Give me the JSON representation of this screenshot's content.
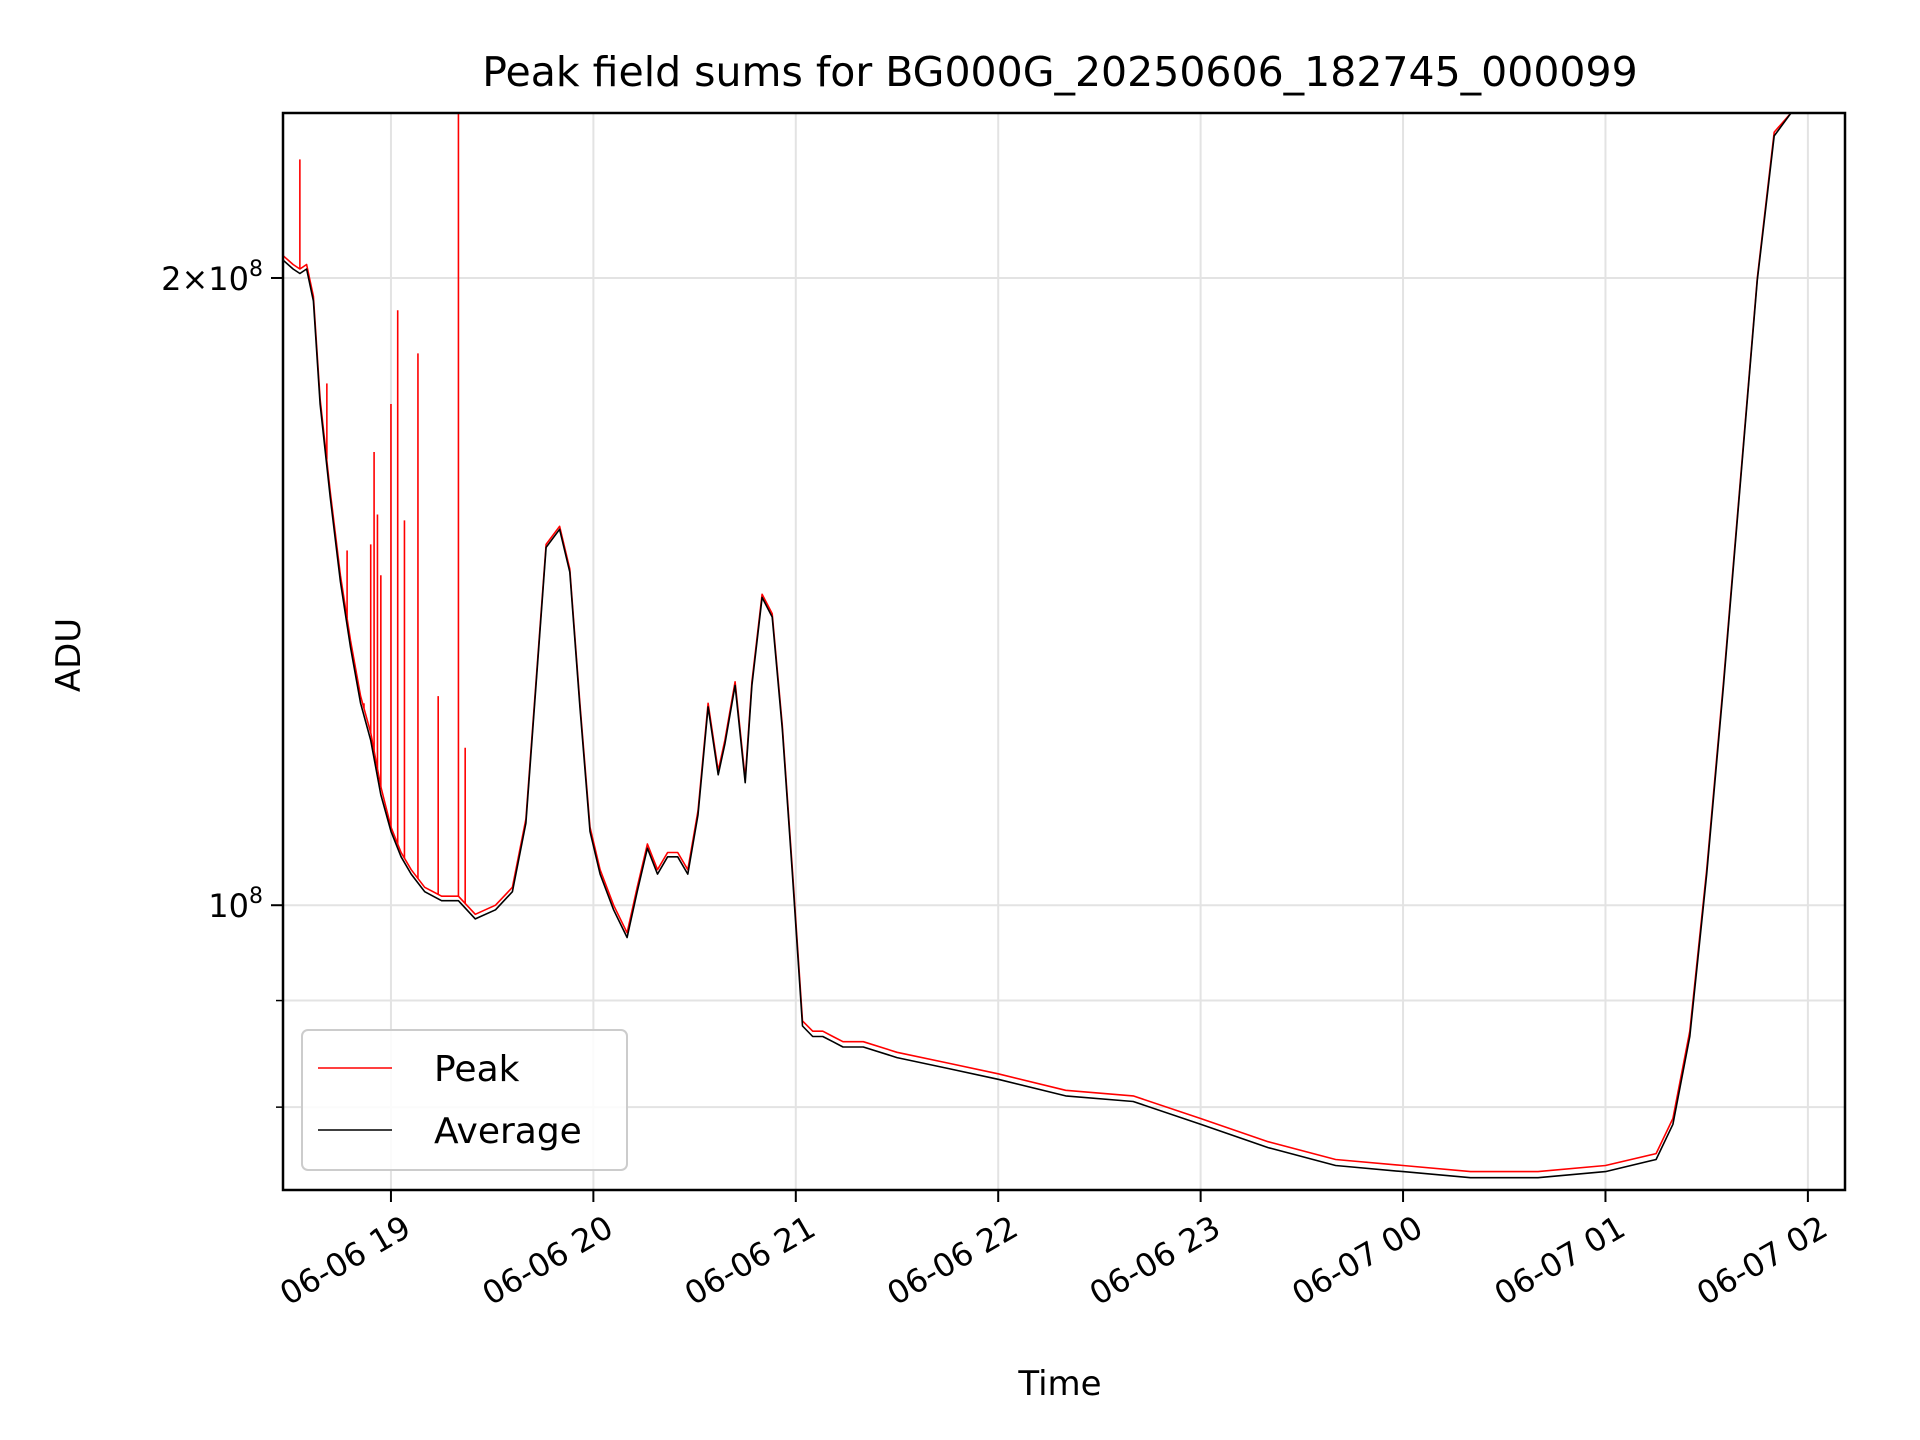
{
  "chart_data": {
    "type": "line",
    "title": "Peak field sums for BG000G_20250606_182745_000099",
    "xlabel": "Time",
    "ylabel": "ADU",
    "x_unit": "hours",
    "xlim": [
      "2025-06-06 18:28",
      "2025-06-07 02:11"
    ],
    "ylim": [
      73000000,
      240000000
    ],
    "yscale": "log",
    "grid": true,
    "legend_position": "lower-left",
    "x_ticks": [
      {
        "value": "2025-06-06 19:00",
        "label": "06-06 19"
      },
      {
        "value": "2025-06-06 20:00",
        "label": "06-06 20"
      },
      {
        "value": "2025-06-06 21:00",
        "label": "06-06 21"
      },
      {
        "value": "2025-06-06 22:00",
        "label": "06-06 22"
      },
      {
        "value": "2025-06-06 23:00",
        "label": "06-06 23"
      },
      {
        "value": "2025-06-07 00:00",
        "label": "06-07 00"
      },
      {
        "value": "2025-06-07 01:00",
        "label": "06-07 01"
      },
      {
        "value": "2025-06-07 02:00",
        "label": "06-07 02"
      }
    ],
    "y_ticks": [
      {
        "value": 200000000,
        "mant": "2",
        "exp": "8"
      },
      {
        "value": 100000000,
        "mant": "",
        "exp": "8"
      }
    ],
    "y_minor_ticks": [
      80000000,
      90000000
    ],
    "series": [
      {
        "name": "Peak",
        "color": "#ff0000",
        "x": [
          "2025-06-06 18:28",
          "2025-06-06 18:31",
          "2025-06-06 18:33",
          "2025-06-06 18:35",
          "2025-06-06 18:37",
          "2025-06-06 18:39",
          "2025-06-06 18:42",
          "2025-06-06 18:45",
          "2025-06-06 18:48",
          "2025-06-06 18:51",
          "2025-06-06 18:54",
          "2025-06-06 18:57",
          "2025-06-06 19:00",
          "2025-06-06 19:03",
          "2025-06-06 19:06",
          "2025-06-06 19:10",
          "2025-06-06 19:15",
          "2025-06-06 19:20",
          "2025-06-06 19:25",
          "2025-06-06 19:31",
          "2025-06-06 19:36",
          "2025-06-06 19:40",
          "2025-06-06 19:43",
          "2025-06-06 19:46",
          "2025-06-06 19:50",
          "2025-06-06 19:53",
          "2025-06-06 19:56",
          "2025-06-06 19:59",
          "2025-06-06 20:02",
          "2025-06-06 20:06",
          "2025-06-06 20:10",
          "2025-06-06 20:13",
          "2025-06-06 20:16",
          "2025-06-06 20:19",
          "2025-06-06 20:22",
          "2025-06-06 20:25",
          "2025-06-06 20:28",
          "2025-06-06 20:31",
          "2025-06-06 20:34",
          "2025-06-06 20:37",
          "2025-06-06 20:39",
          "2025-06-06 20:42",
          "2025-06-06 20:45",
          "2025-06-06 20:47",
          "2025-06-06 20:50",
          "2025-06-06 20:53",
          "2025-06-06 20:56",
          "2025-06-06 20:59",
          "2025-06-06 21:02",
          "2025-06-06 21:05",
          "2025-06-06 21:08",
          "2025-06-06 21:11",
          "2025-06-06 21:14",
          "2025-06-06 21:20",
          "2025-06-06 21:30",
          "2025-06-06 21:45",
          "2025-06-06 22:00",
          "2025-06-06 22:20",
          "2025-06-06 22:40",
          "2025-06-06 23:00",
          "2025-06-06 23:20",
          "2025-06-06 23:40",
          "2025-06-07 00:00",
          "2025-06-07 00:20",
          "2025-06-07 00:40",
          "2025-06-07 01:00",
          "2025-06-07 01:15",
          "2025-06-07 01:20",
          "2025-06-07 01:25",
          "2025-06-07 01:30",
          "2025-06-07 01:35",
          "2025-06-07 01:40",
          "2025-06-07 01:45",
          "2025-06-07 01:50",
          "2025-06-07 01:55",
          "2025-06-07 02:00",
          "2025-06-07 02:05",
          "2025-06-07 02:11"
        ],
        "y": [
          205000000,
          203000000,
          202000000,
          203000000,
          196000000,
          175000000,
          158000000,
          144000000,
          134000000,
          126000000,
          121000000,
          114000000,
          109000000,
          106000000,
          104000000,
          102000000,
          101000000,
          101000000,
          99000000,
          100000000,
          102000000,
          110000000,
          128000000,
          149000000,
          152000000,
          145000000,
          125000000,
          109000000,
          104000000,
          100000000,
          97000000,
          102000000,
          107000000,
          104000000,
          106000000,
          106000000,
          104000000,
          111000000,
          125000000,
          116000000,
          120000000,
          128000000,
          115000000,
          128000000,
          141000000,
          138000000,
          122000000,
          104000000,
          88000000,
          87000000,
          87000000,
          86500000,
          86000000,
          86000000,
          85000000,
          84000000,
          83000000,
          81500000,
          81000000,
          79000000,
          77000000,
          75500000,
          75000000,
          74500000,
          74500000,
          75000000,
          76000000,
          79000000,
          87000000,
          104000000,
          128000000,
          160000000,
          200000000,
          235000000,
          240000000,
          240000000,
          240000000,
          240000000
        ],
        "spikes": [
          {
            "x": "2025-06-06 18:33",
            "peak": 228000000
          },
          {
            "x": "2025-06-06 18:41",
            "peak": 178000000
          },
          {
            "x": "2025-06-06 18:47",
            "peak": 148000000
          },
          {
            "x": "2025-06-06 18:52",
            "peak": 125000000
          },
          {
            "x": "2025-06-06 18:54",
            "peak": 149000000
          },
          {
            "x": "2025-06-06 18:55",
            "peak": 165000000
          },
          {
            "x": "2025-06-06 18:56",
            "peak": 154000000
          },
          {
            "x": "2025-06-06 18:57",
            "peak": 144000000
          },
          {
            "x": "2025-06-06 19:00",
            "peak": 174000000
          },
          {
            "x": "2025-06-06 19:02",
            "peak": 193000000
          },
          {
            "x": "2025-06-06 19:04",
            "peak": 153000000
          },
          {
            "x": "2025-06-06 19:08",
            "peak": 184000000
          },
          {
            "x": "2025-06-06 19:14",
            "peak": 126000000
          },
          {
            "x": "2025-06-06 19:20",
            "peak": 240000000
          },
          {
            "x": "2025-06-06 19:22",
            "peak": 119000000
          }
        ]
      },
      {
        "name": "Average",
        "color": "#000000",
        "x": [
          "2025-06-06 18:28",
          "2025-06-06 18:31",
          "2025-06-06 18:33",
          "2025-06-06 18:35",
          "2025-06-06 18:37",
          "2025-06-06 18:39",
          "2025-06-06 18:42",
          "2025-06-06 18:45",
          "2025-06-06 18:48",
          "2025-06-06 18:51",
          "2025-06-06 18:54",
          "2025-06-06 18:57",
          "2025-06-06 19:00",
          "2025-06-06 19:03",
          "2025-06-06 19:06",
          "2025-06-06 19:10",
          "2025-06-06 19:15",
          "2025-06-06 19:20",
          "2025-06-06 19:25",
          "2025-06-06 19:31",
          "2025-06-06 19:36",
          "2025-06-06 19:40",
          "2025-06-06 19:43",
          "2025-06-06 19:46",
          "2025-06-06 19:50",
          "2025-06-06 19:53",
          "2025-06-06 19:56",
          "2025-06-06 19:59",
          "2025-06-06 20:02",
          "2025-06-06 20:06",
          "2025-06-06 20:10",
          "2025-06-06 20:13",
          "2025-06-06 20:16",
          "2025-06-06 20:19",
          "2025-06-06 20:22",
          "2025-06-06 20:25",
          "2025-06-06 20:28",
          "2025-06-06 20:31",
          "2025-06-06 20:34",
          "2025-06-06 20:37",
          "2025-06-06 20:39",
          "2025-06-06 20:42",
          "2025-06-06 20:45",
          "2025-06-06 20:47",
          "2025-06-06 20:50",
          "2025-06-06 20:53",
          "2025-06-06 20:56",
          "2025-06-06 20:59",
          "2025-06-06 21:02",
          "2025-06-06 21:05",
          "2025-06-06 21:08",
          "2025-06-06 21:11",
          "2025-06-06 21:14",
          "2025-06-06 21:20",
          "2025-06-06 21:30",
          "2025-06-06 21:45",
          "2025-06-06 22:00",
          "2025-06-06 22:20",
          "2025-06-06 22:40",
          "2025-06-06 23:00",
          "2025-06-06 23:20",
          "2025-06-06 23:40",
          "2025-06-07 00:00",
          "2025-06-07 00:20",
          "2025-06-07 00:40",
          "2025-06-07 01:00",
          "2025-06-07 01:15",
          "2025-06-07 01:20",
          "2025-06-07 01:25",
          "2025-06-07 01:30",
          "2025-06-07 01:35",
          "2025-06-07 01:40",
          "2025-06-07 01:45",
          "2025-06-07 01:50",
          "2025-06-07 01:55",
          "2025-06-07 02:00",
          "2025-06-07 02:05",
          "2025-06-07 02:11"
        ],
        "y": [
          204000000,
          202000000,
          201000000,
          202000000,
          195000000,
          174000000,
          157000000,
          143000000,
          133000000,
          125000000,
          120000000,
          113000000,
          108500000,
          105500000,
          103500000,
          101500000,
          100500000,
          100500000,
          98500000,
          99500000,
          101500000,
          109500000,
          127500000,
          148500000,
          151500000,
          144500000,
          124500000,
          108500000,
          103500000,
          99500000,
          96500000,
          101500000,
          106500000,
          103500000,
          105500000,
          105500000,
          103500000,
          110500000,
          124500000,
          115500000,
          119500000,
          127500000,
          114500000,
          127500000,
          140500000,
          137500000,
          121500000,
          103500000,
          87500000,
          86500000,
          86500000,
          86000000,
          85500000,
          85500000,
          84500000,
          83500000,
          82500000,
          81000000,
          80500000,
          78500000,
          76500000,
          75000000,
          74500000,
          74000000,
          74000000,
          74500000,
          75500000,
          78500000,
          86500000,
          103500000,
          127500000,
          159500000,
          199500000,
          234000000,
          240000000,
          240000000,
          240000000,
          240000000
        ]
      }
    ]
  }
}
